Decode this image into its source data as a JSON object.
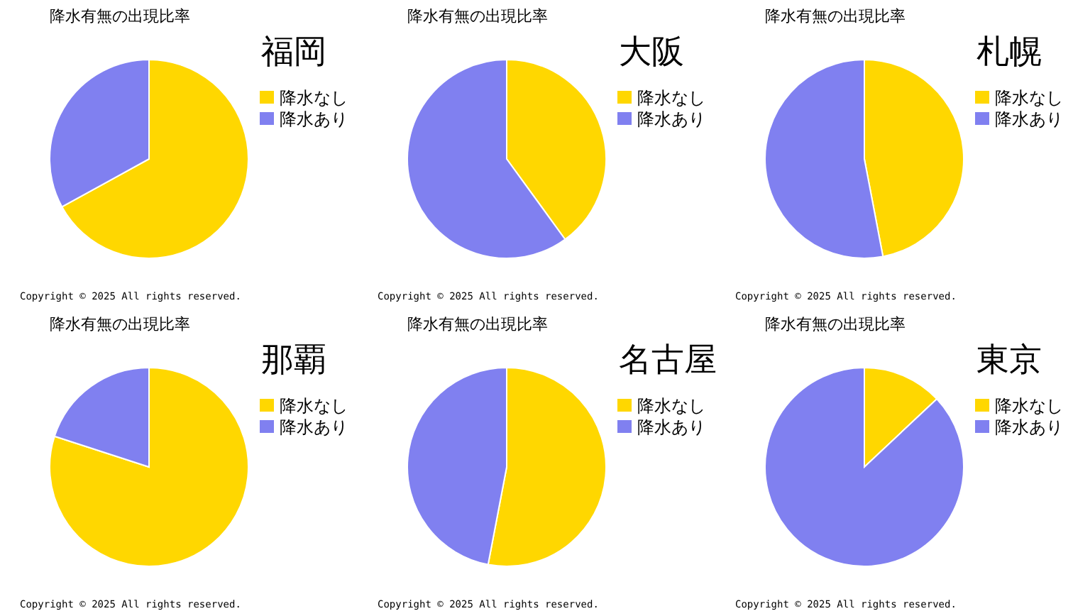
{
  "chart_data": [
    {
      "type": "pie",
      "title": "降水有無の出現比率",
      "subtitle": "福岡",
      "categories": [
        "降水なし",
        "降水あり"
      ],
      "values": [
        67,
        33
      ],
      "colors": [
        "#ffd700",
        "#8080f0"
      ],
      "legend": "right",
      "annotations": [
        "Copyright ©  2025  All rights reserved."
      ]
    },
    {
      "type": "pie",
      "title": "降水有無の出現比率",
      "subtitle": "大阪",
      "categories": [
        "降水なし",
        "降水あり"
      ],
      "values": [
        40,
        60
      ],
      "colors": [
        "#ffd700",
        "#8080f0"
      ],
      "legend": "right",
      "annotations": [
        "Copyright ©  2025  All rights reserved."
      ]
    },
    {
      "type": "pie",
      "title": "降水有無の出現比率",
      "subtitle": "札幌",
      "categories": [
        "降水なし",
        "降水あり"
      ],
      "values": [
        47,
        53
      ],
      "colors": [
        "#ffd700",
        "#8080f0"
      ],
      "legend": "right",
      "annotations": [
        "Copyright ©  2025  All rights reserved."
      ]
    },
    {
      "type": "pie",
      "title": "降水有無の出現比率",
      "subtitle": "那覇",
      "categories": [
        "降水なし",
        "降水あり"
      ],
      "values": [
        80,
        20
      ],
      "colors": [
        "#ffd700",
        "#8080f0"
      ],
      "legend": "right",
      "annotations": [
        "Copyright ©  2025  All rights reserved."
      ]
    },
    {
      "type": "pie",
      "title": "降水有無の出現比率",
      "subtitle": "名古屋",
      "categories": [
        "降水なし",
        "降水あり"
      ],
      "values": [
        53,
        47
      ],
      "colors": [
        "#ffd700",
        "#8080f0"
      ],
      "legend": "right",
      "annotations": [
        "Copyright ©  2025  All rights reserved."
      ]
    },
    {
      "type": "pie",
      "title": "降水有無の出現比率",
      "subtitle": "東京",
      "categories": [
        "降水なし",
        "降水あり"
      ],
      "values": [
        13,
        87
      ],
      "colors": [
        "#ffd700",
        "#8080f0"
      ],
      "legend": "right",
      "annotations": [
        "Copyright ©  2025  All rights reserved."
      ]
    }
  ]
}
